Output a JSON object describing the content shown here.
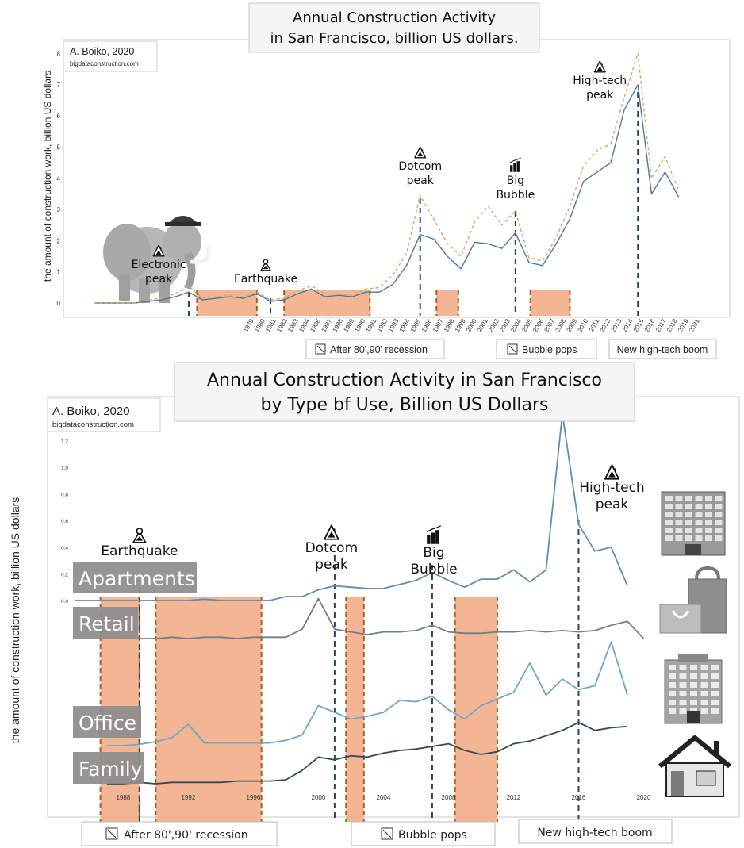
{
  "chart_data": [
    {
      "type": "line",
      "title": "Annual Construction Activity in San Francisco, billion US dollars.",
      "title_lines": [
        "Annual Construction Activity",
        "in San Francisco, billion US dollars."
      ],
      "credit": "A. Boiko, 2020",
      "credit_site": "bigdataconstruction.com",
      "ylabel": "the amount of construction work, billion US dollars",
      "ylim": [
        0,
        8
      ],
      "y_ticks": [
        "0",
        "1",
        "2",
        "3",
        "4",
        "5",
        "6",
        "7",
        "8"
      ],
      "x_ticks": [
        "1979",
        "1980",
        "1981",
        "1982",
        "1983",
        "1984",
        "1986",
        "1987",
        "1988",
        "1989",
        "1990",
        "1991",
        "1992",
        "1993",
        "1994",
        "1995",
        "1996",
        "1997",
        "1998",
        "1999",
        "2000",
        "2001",
        "2002",
        "2003",
        "2004",
        "2005",
        "2006",
        "2007",
        "2008",
        "2009",
        "2010",
        "2011",
        "2012",
        "2013",
        "2014",
        "2015",
        "2016",
        "2017",
        "2018",
        "2019",
        "2021"
      ],
      "series": [
        {
          "color": "#4a7a9b",
          "style": "solid",
          "x": [
            1976,
            1977,
            1978,
            1979,
            1980,
            1981,
            1982,
            1983,
            1984,
            1986,
            1987,
            1988,
            1989,
            1990,
            1991,
            1992,
            1993,
            1994,
            1995,
            1996,
            1997,
            1998,
            1999,
            2000,
            2001,
            2002,
            2003,
            2004,
            2005,
            2006,
            2007,
            2008,
            2009,
            2010,
            2011,
            2012,
            2013,
            2014,
            2015,
            2016,
            2017,
            2018,
            2019
          ],
          "values": [
            0,
            0,
            0,
            0,
            0.05,
            0.1,
            0.2,
            0.35,
            0.1,
            0.2,
            0.15,
            0.3,
            0.05,
            0.1,
            0.3,
            0.45,
            0.2,
            0.25,
            0.2,
            0.35,
            0.35,
            0.6,
            1.2,
            2.2,
            2.05,
            1.5,
            1.1,
            1.95,
            1.9,
            1.75,
            2.25,
            1.3,
            1.2,
            1.9,
            2.7,
            3.9,
            4.2,
            4.5,
            6.2,
            7.0,
            3.5,
            4.2,
            3.4
          ]
        },
        {
          "color": "#d9a85e",
          "style": "dashed",
          "x": [
            1976,
            1977,
            1978,
            1979,
            1980,
            1981,
            1982,
            1983,
            1984,
            1986,
            1987,
            1988,
            1989,
            1990,
            1991,
            1992,
            1993,
            1994,
            1995,
            1996,
            1997,
            1998,
            1999,
            2000,
            2001,
            2002,
            2003,
            2004,
            2005,
            2006,
            2007,
            2008,
            2009,
            2010,
            2011,
            2012,
            2013,
            2014,
            2015,
            2016,
            2017,
            2018,
            2019
          ],
          "values": [
            0,
            0,
            0,
            0,
            0.1,
            0.15,
            0.3,
            0.55,
            0.15,
            0.25,
            0.2,
            0.35,
            0.1,
            0.15,
            0.4,
            0.55,
            0.3,
            0.3,
            0.25,
            0.45,
            0.5,
            0.9,
            1.6,
            3.45,
            2.7,
            1.9,
            1.5,
            2.6,
            3.1,
            2.5,
            2.95,
            1.45,
            1.35,
            2.1,
            3.1,
            4.4,
            4.9,
            5.1,
            6.6,
            8.0,
            4.0,
            4.7,
            3.6
          ]
        }
      ],
      "shaded_periods": [
        [
          1983.6,
          1988
        ],
        [
          1990,
          1996.3
        ],
        [
          2001.2,
          2002.8
        ],
        [
          2008.1,
          2011
        ]
      ],
      "annotations": [
        {
          "text": [
            "Electronic",
            "peak"
          ],
          "icon": "rockslide-icon",
          "x": 1983
        },
        {
          "text": [
            "Earthquake"
          ],
          "icon": "earthquake-icon",
          "x": 1989
        },
        {
          "text": [
            "Dotcom",
            "peak"
          ],
          "icon": "rockslide-icon",
          "x": 2000
        },
        {
          "text": [
            "Big",
            "Bubble"
          ],
          "icon": "city-chart-icon",
          "x": 2007
        },
        {
          "text": [
            "High-tech",
            "peak"
          ],
          "icon": "rockslide-icon",
          "x": 2016
        }
      ],
      "legend_boxes": [
        "After 80',90' recession",
        "Bubble pops",
        "New high-tech boom"
      ]
    },
    {
      "type": "line",
      "title": "Annual Construction Activity in San Francisco by Type bf Use, Billion US Dollars",
      "title_lines": [
        "Annual Construction Activity in San Francisco",
        "by Type bf Use, Billion US Dollars"
      ],
      "credit": "A. Boiko, 2020",
      "credit_site": "bigdataconstruction.com",
      "ylabel": "the amount of construction work, billion US dollars",
      "y_ticks": [
        "0.0",
        "0.2",
        "0.4",
        "0.6",
        "0.8",
        "1.0",
        "1.2"
      ],
      "ylim": [
        0,
        1.3
      ],
      "x_ticks": [
        "1988",
        "1992",
        "1996",
        "2000",
        "2004",
        "2008",
        "2012",
        "2016",
        "2020"
      ],
      "series": [
        {
          "name": "Apartments",
          "color": "#5b8fb3",
          "icon": "office-building-icon",
          "x": [
            1985,
            1986,
            1987,
            1988,
            1989,
            1990,
            1991,
            1992,
            1993,
            1994,
            1995,
            1996,
            1997,
            1998,
            1999,
            2000,
            2001,
            2002,
            2003,
            2004,
            2005,
            2006,
            2007,
            2008,
            2009,
            2010,
            2011,
            2012,
            2013,
            2014,
            2015,
            2016,
            2017,
            2018,
            2019
          ],
          "values": [
            0,
            0,
            0,
            0,
            0,
            0,
            0,
            0,
            0.01,
            0,
            0,
            0,
            0,
            0.03,
            0.03,
            0.08,
            0.11,
            0.1,
            0.09,
            0.09,
            0.12,
            0.15,
            0.21,
            0.15,
            0.1,
            0.16,
            0.16,
            0.23,
            0.14,
            0.23,
            1.4,
            0.57,
            0.37,
            0.4,
            0.11
          ]
        },
        {
          "name": "Retail",
          "color": "#6e8089",
          "icon": "shopping-bag-icon",
          "x": [
            1988,
            1989,
            1990,
            1991,
            1992,
            1993,
            1994,
            1995,
            1996,
            1997,
            1998,
            1999,
            2000,
            2001,
            2002,
            2003,
            2004,
            2005,
            2006,
            2007,
            2008,
            2009,
            2010,
            2011,
            2012,
            2013,
            2014,
            2015,
            2016,
            2017,
            2018,
            2019,
            2020
          ],
          "values": [
            0,
            0,
            0,
            0.01,
            0,
            0.01,
            0.01,
            0,
            0.01,
            0.01,
            0.01,
            0.07,
            0.3,
            0.07,
            0.05,
            0.03,
            0.05,
            0.05,
            0.06,
            0.1,
            0.05,
            0.04,
            0.04,
            0.05,
            0.05,
            0.06,
            0.05,
            0.06,
            0.05,
            0.06,
            0.1,
            0.13,
            0
          ]
        },
        {
          "name": "Office",
          "color": "#6aa9c8",
          "icon": "office-tower-icon",
          "x": [
            1987,
            1988,
            1989,
            1990,
            1991,
            1992,
            1993,
            1994,
            1995,
            1996,
            1997,
            1998,
            1999,
            2000,
            2001,
            2002,
            2003,
            2004,
            2005,
            2006,
            2007,
            2008,
            2009,
            2010,
            2011,
            2012,
            2013,
            2014,
            2015,
            2016,
            2017,
            2018,
            2019
          ],
          "values": [
            0,
            0,
            0.01,
            0.03,
            0.06,
            0.16,
            0.02,
            0.02,
            0.02,
            0.02,
            0.02,
            0.04,
            0.08,
            0.3,
            0.25,
            0.2,
            0.22,
            0.25,
            0.34,
            0.33,
            0.37,
            0.27,
            0.2,
            0.3,
            0.35,
            0.4,
            0.62,
            0.38,
            0.5,
            0.42,
            0.45,
            0.78,
            0.38
          ]
        },
        {
          "name": "Family",
          "color": "#2f4a5e",
          "icon": "house-icon",
          "x": [
            1987,
            1988,
            1989,
            1990,
            1991,
            1992,
            1993,
            1994,
            1995,
            1996,
            1997,
            1998,
            1999,
            2000,
            2001,
            2002,
            2003,
            2004,
            2005,
            2006,
            2007,
            2008,
            2009,
            2010,
            2011,
            2012,
            2013,
            2014,
            2015,
            2016,
            2017,
            2018,
            2019
          ],
          "values": [
            0,
            0,
            0.01,
            0,
            0.01,
            0.01,
            0.01,
            0.01,
            0.02,
            0.02,
            0.02,
            0.03,
            0.1,
            0.2,
            0.18,
            0.21,
            0.2,
            0.23,
            0.25,
            0.26,
            0.28,
            0.3,
            0.25,
            0.22,
            0.24,
            0.3,
            0.32,
            0.36,
            0.4,
            0.46,
            0.4,
            0.42,
            0.43
          ]
        }
      ],
      "shaded_periods": [
        [
          1986.6,
          1989
        ],
        [
          1990,
          1996.5
        ],
        [
          2001.7,
          2002.8
        ],
        [
          2008.4,
          2011
        ]
      ],
      "annotations": [
        {
          "text": [
            "Earthquake"
          ],
          "icon": "earthquake-icon",
          "x": 1989
        },
        {
          "text": [
            "Dotcom",
            "peak"
          ],
          "icon": "rockslide-icon",
          "x": 2001
        },
        {
          "text": [
            "Big",
            "Bubble"
          ],
          "icon": "city-chart-icon",
          "x": 2007
        },
        {
          "text": [
            "High-tech",
            "peak"
          ],
          "icon": "rockslide-icon",
          "x": 2016
        }
      ],
      "legend_boxes": [
        "After 80',90' recession",
        "Bubble pops",
        "New high-tech boom"
      ]
    }
  ],
  "colors": {
    "shade_fill": "#f2a882",
    "shade_edge": "#b05a1e",
    "label_box": "#8c8c8c",
    "frame": "#bbbbbb"
  }
}
